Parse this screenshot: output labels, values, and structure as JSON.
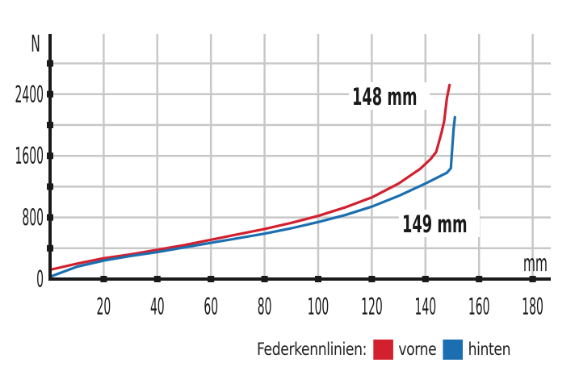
{
  "chart_data": {
    "type": "line",
    "title": "",
    "xlabel": "mm",
    "ylabel": "N",
    "xlim": [
      0,
      185
    ],
    "ylim": [
      0,
      2900
    ],
    "x_ticks": [
      20,
      40,
      60,
      80,
      100,
      120,
      140,
      160,
      180
    ],
    "y_ticks": [
      0,
      800,
      1600,
      2400
    ],
    "y_minor_ticks": [
      400,
      1200,
      2000,
      2800
    ],
    "grid": true,
    "legend": {
      "title": "Federkennlinien:",
      "position": "bottom-right"
    },
    "series": [
      {
        "name": "vorne",
        "color": "#d2202f",
        "annotation": "148 mm",
        "points": [
          [
            0,
            120
          ],
          [
            10,
            200
          ],
          [
            20,
            270
          ],
          [
            30,
            320
          ],
          [
            40,
            380
          ],
          [
            50,
            440
          ],
          [
            60,
            510
          ],
          [
            70,
            580
          ],
          [
            80,
            650
          ],
          [
            90,
            730
          ],
          [
            100,
            820
          ],
          [
            110,
            930
          ],
          [
            120,
            1060
          ],
          [
            130,
            1240
          ],
          [
            138,
            1430
          ],
          [
            142,
            1560
          ],
          [
            144,
            1650
          ],
          [
            146,
            1900
          ],
          [
            147,
            2050
          ],
          [
            148,
            2350
          ],
          [
            149,
            2520
          ]
        ]
      },
      {
        "name": "hinten",
        "color": "#1b6fb0",
        "annotation": "149 mm",
        "points": [
          [
            0,
            30
          ],
          [
            10,
            160
          ],
          [
            20,
            240
          ],
          [
            30,
            300
          ],
          [
            40,
            350
          ],
          [
            50,
            410
          ],
          [
            60,
            470
          ],
          [
            70,
            530
          ],
          [
            80,
            590
          ],
          [
            90,
            660
          ],
          [
            100,
            740
          ],
          [
            110,
            830
          ],
          [
            120,
            940
          ],
          [
            130,
            1080
          ],
          [
            140,
            1240
          ],
          [
            148,
            1380
          ],
          [
            149.5,
            1440
          ],
          [
            150,
            1700
          ],
          [
            150.5,
            1950
          ],
          [
            151,
            2100
          ]
        ]
      }
    ]
  },
  "axis": {
    "y_unit": "N",
    "x_unit": "mm"
  },
  "annotations": {
    "front": "148 mm",
    "rear": "149 mm"
  },
  "legend": {
    "title": "Federkennlinien:",
    "items": [
      {
        "label": "vorne",
        "color": "#d2202f"
      },
      {
        "label": "hinten",
        "color": "#1b6fb0"
      }
    ]
  }
}
